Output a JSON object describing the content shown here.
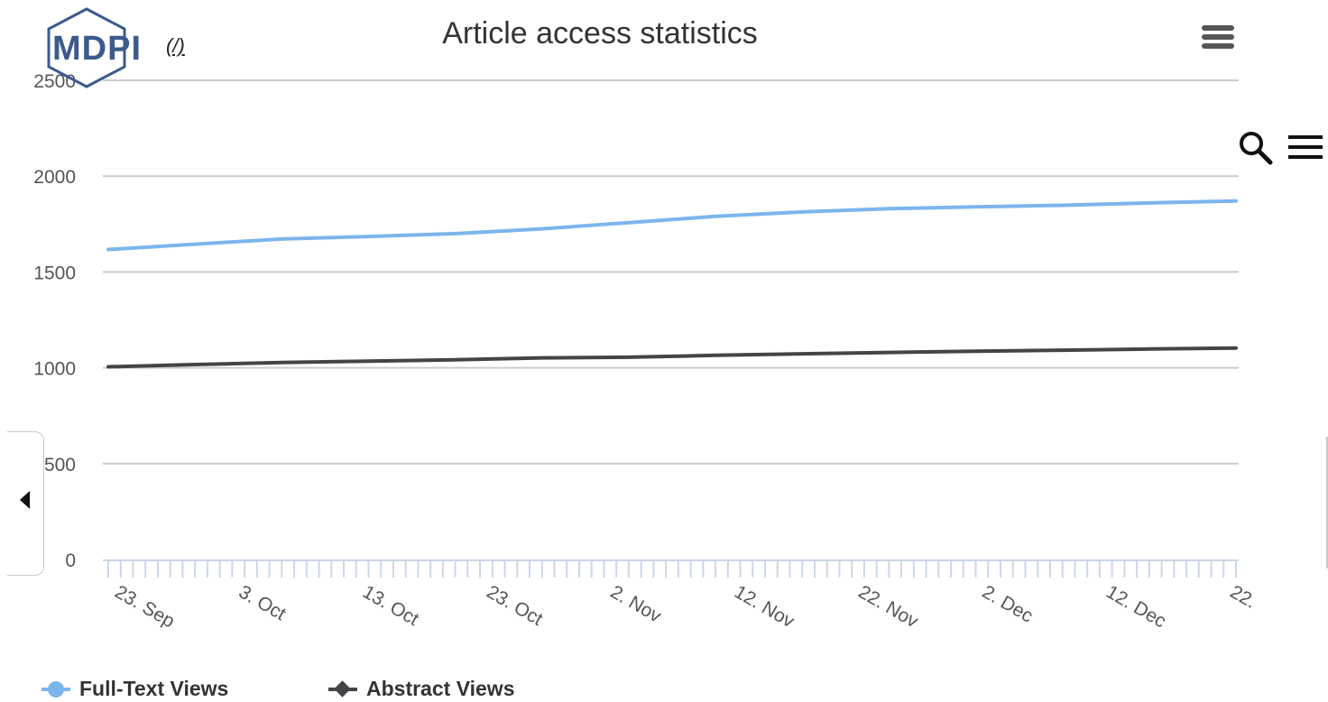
{
  "branding": {
    "logo_text": "MDPI",
    "logo_link_text": "(/)"
  },
  "chart_data": {
    "type": "line",
    "title": "Article access statistics",
    "xlabel": "",
    "ylabel": "",
    "ylim": [
      0,
      2500
    ],
    "yticks": [
      0,
      500,
      1000,
      1500,
      2000,
      2500
    ],
    "xlim": [
      "2020-09-22",
      "2020-12-22"
    ],
    "xticks": [
      {
        "date": "2020-09-23",
        "label": "23. Sep"
      },
      {
        "date": "2020-10-03",
        "label": "3. Oct"
      },
      {
        "date": "2020-10-13",
        "label": "13. Oct"
      },
      {
        "date": "2020-10-23",
        "label": "23. Oct"
      },
      {
        "date": "2020-11-02",
        "label": "2. Nov"
      },
      {
        "date": "2020-11-12",
        "label": "12. Nov"
      },
      {
        "date": "2020-11-22",
        "label": "22. Nov"
      },
      {
        "date": "2020-12-02",
        "label": "2. Dec"
      },
      {
        "date": "2020-12-12",
        "label": "12. Dec"
      },
      {
        "date": "2020-12-22",
        "label": "22."
      }
    ],
    "grid": true,
    "legend_position": "bottom-left",
    "series": [
      {
        "name": "Full-Text Views",
        "color": "#7cb5ec",
        "marker": "circle",
        "points": [
          [
            "2020-09-22",
            1617
          ],
          [
            "2020-09-29",
            1645
          ],
          [
            "2020-10-06",
            1672
          ],
          [
            "2020-10-13",
            1685
          ],
          [
            "2020-10-20",
            1700
          ],
          [
            "2020-10-27",
            1725
          ],
          [
            "2020-11-03",
            1757
          ],
          [
            "2020-11-10",
            1790
          ],
          [
            "2020-11-17",
            1813
          ],
          [
            "2020-11-24",
            1830
          ],
          [
            "2020-12-01",
            1840
          ],
          [
            "2020-12-08",
            1848
          ],
          [
            "2020-12-15",
            1860
          ],
          [
            "2020-12-22",
            1870
          ]
        ]
      },
      {
        "name": "Abstract Views",
        "color": "#434348",
        "marker": "diamond",
        "points": [
          [
            "2020-09-22",
            1005
          ],
          [
            "2020-09-29",
            1017
          ],
          [
            "2020-10-06",
            1028
          ],
          [
            "2020-10-13",
            1035
          ],
          [
            "2020-10-20",
            1042
          ],
          [
            "2020-10-27",
            1052
          ],
          [
            "2020-11-03",
            1055
          ],
          [
            "2020-11-10",
            1065
          ],
          [
            "2020-11-17",
            1073
          ],
          [
            "2020-11-24",
            1080
          ],
          [
            "2020-12-01",
            1086
          ],
          [
            "2020-12-08",
            1092
          ],
          [
            "2020-12-15",
            1098
          ],
          [
            "2020-12-22",
            1103
          ]
        ]
      }
    ]
  }
}
